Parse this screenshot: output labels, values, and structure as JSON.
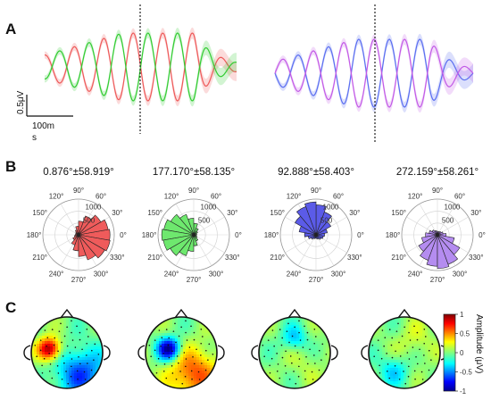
{
  "panels": {
    "a": "A",
    "b": "B",
    "c": "C"
  },
  "panel_a": {
    "scale_y": "0.5μV",
    "scale_x": "100m",
    "scale_x_unit": "s"
  },
  "polar_titles": [
    "0.876°±58.919°",
    "177.170°±58.135°",
    "92.888°±58.403°",
    "272.159°±58.261°"
  ],
  "polar_angle_labels": [
    "0°",
    "30°",
    "60°",
    "90°",
    "120°",
    "150°",
    "180°",
    "210°",
    "240°",
    "270°",
    "300°",
    "330°"
  ],
  "polar_radius_labels": [
    "500",
    "1000"
  ],
  "colorbar": {
    "title": "Amplitude (μV)",
    "ticks": [
      "1",
      "0.5",
      "0",
      "-0.5",
      "-1"
    ],
    "range": [
      -1,
      1
    ]
  },
  "colors": {
    "red_wave": "#ee5a5a",
    "green_wave": "#33cc33",
    "blue_wave": "#5a6ef0",
    "purple_wave": "#c25ae6",
    "red_rose": "#ef5b5b",
    "green_rose": "#6ee86e",
    "blue_rose": "#5b5be8",
    "purple_rose": "#b48cf0"
  },
  "chart_data": [
    {
      "type": "line",
      "panel": "A-left",
      "series": [
        {
          "color": "red",
          "cycles": 6.5,
          "phase_deg": 0,
          "onset": 0.78
        },
        {
          "color": "green",
          "cycles": 6.5,
          "phase_deg": 180,
          "onset": 0.78
        }
      ],
      "event_marker": "dotted vertical line"
    },
    {
      "type": "line",
      "panel": "A-right",
      "series": [
        {
          "color": "blue",
          "cycles": 6.5,
          "phase_deg": 90,
          "onset": 0.78
        },
        {
          "color": "purple",
          "cycles": 6.5,
          "phase_deg": 270,
          "onset": 0.78
        }
      ],
      "event_marker": "dotted vertical line"
    },
    {
      "type": "polar_histogram",
      "title": "0.876°±58.919°",
      "rmax": 1250,
      "bins_deg": [
        0,
        20,
        40,
        60,
        80,
        100,
        120,
        140,
        160,
        180,
        200,
        220,
        240,
        260,
        280,
        300,
        320,
        340
      ],
      "counts": [
        1100,
        1050,
        900,
        700,
        480,
        300,
        180,
        120,
        100,
        110,
        150,
        230,
        380,
        560,
        760,
        930,
        1060,
        1120
      ],
      "color": "red"
    },
    {
      "type": "polar_histogram",
      "title": "177.170°±58.135°",
      "rmax": 1250,
      "bins_deg": [
        0,
        20,
        40,
        60,
        80,
        100,
        120,
        140,
        160,
        180,
        200,
        220,
        240,
        260,
        280,
        300,
        320,
        340
      ],
      "counts": [
        100,
        110,
        160,
        250,
        400,
        580,
        760,
        930,
        1060,
        1120,
        1080,
        950,
        780,
        580,
        380,
        230,
        140,
        100
      ],
      "color": "green"
    },
    {
      "type": "polar_histogram",
      "title": "92.888°±58.403°",
      "rmax": 1250,
      "bins_deg": [
        0,
        20,
        40,
        60,
        80,
        100,
        120,
        140,
        160,
        180,
        200,
        220,
        240,
        260,
        280,
        300,
        320,
        340
      ],
      "counts": [
        300,
        400,
        600,
        850,
        1050,
        1150,
        1050,
        850,
        600,
        400,
        280,
        200,
        150,
        120,
        130,
        160,
        210,
        260
      ],
      "color": "blue"
    },
    {
      "type": "polar_histogram",
      "title": "272.159°±58.261°",
      "rmax": 1250,
      "bins_deg": [
        0,
        20,
        40,
        60,
        80,
        100,
        120,
        140,
        160,
        180,
        200,
        220,
        240,
        260,
        280,
        300,
        320,
        340
      ],
      "counts": [
        300,
        200,
        150,
        120,
        110,
        130,
        160,
        220,
        300,
        420,
        560,
        760,
        950,
        1100,
        1180,
        1100,
        900,
        600
      ],
      "color": "purple"
    },
    {
      "type": "heatmap",
      "description": "scalp topographies",
      "maps": [
        {
          "peaks": [
            {
              "x": -0.5,
              "y": 0.1,
              "a": 1.0,
              "s": 0.22
            },
            {
              "x": 0.4,
              "y": -0.6,
              "a": -0.6,
              "s": 0.5
            }
          ]
        },
        {
          "peaks": [
            {
              "x": -0.35,
              "y": 0.1,
              "a": -1.0,
              "s": 0.22
            },
            {
              "x": 0.35,
              "y": -0.6,
              "a": 0.6,
              "s": 0.5
            }
          ]
        },
        {
          "peaks": [
            {
              "x": 0.0,
              "y": 0.4,
              "a": -0.35,
              "s": 0.25
            },
            {
              "x": 0.3,
              "y": -0.3,
              "a": 0.1,
              "s": 0.4
            }
          ]
        },
        {
          "peaks": [
            {
              "x": -0.3,
              "y": -0.5,
              "a": -0.3,
              "s": 0.3
            },
            {
              "x": 0.3,
              "y": 0.3,
              "a": 0.15,
              "s": 0.4
            }
          ]
        }
      ]
    }
  ]
}
